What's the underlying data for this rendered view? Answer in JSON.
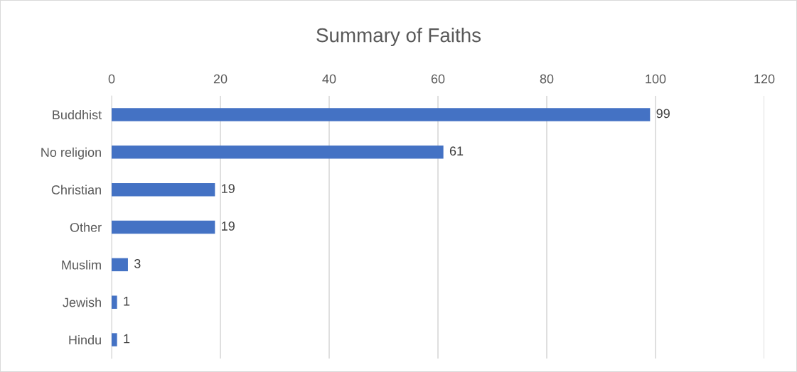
{
  "chart_data": {
    "type": "bar",
    "orientation": "horizontal",
    "title": "Summary of Faiths",
    "categories": [
      "Buddhist",
      "No religion",
      "Christian",
      "Other",
      "Muslim",
      "Jewish",
      "Hindu"
    ],
    "values": [
      99,
      61,
      19,
      19,
      3,
      1,
      1
    ],
    "color": "#4472c4",
    "xlim": [
      0,
      120
    ],
    "xticks": [
      0,
      20,
      40,
      60,
      80,
      100,
      120
    ],
    "grid": "x",
    "data_labels": true,
    "legend": false
  }
}
